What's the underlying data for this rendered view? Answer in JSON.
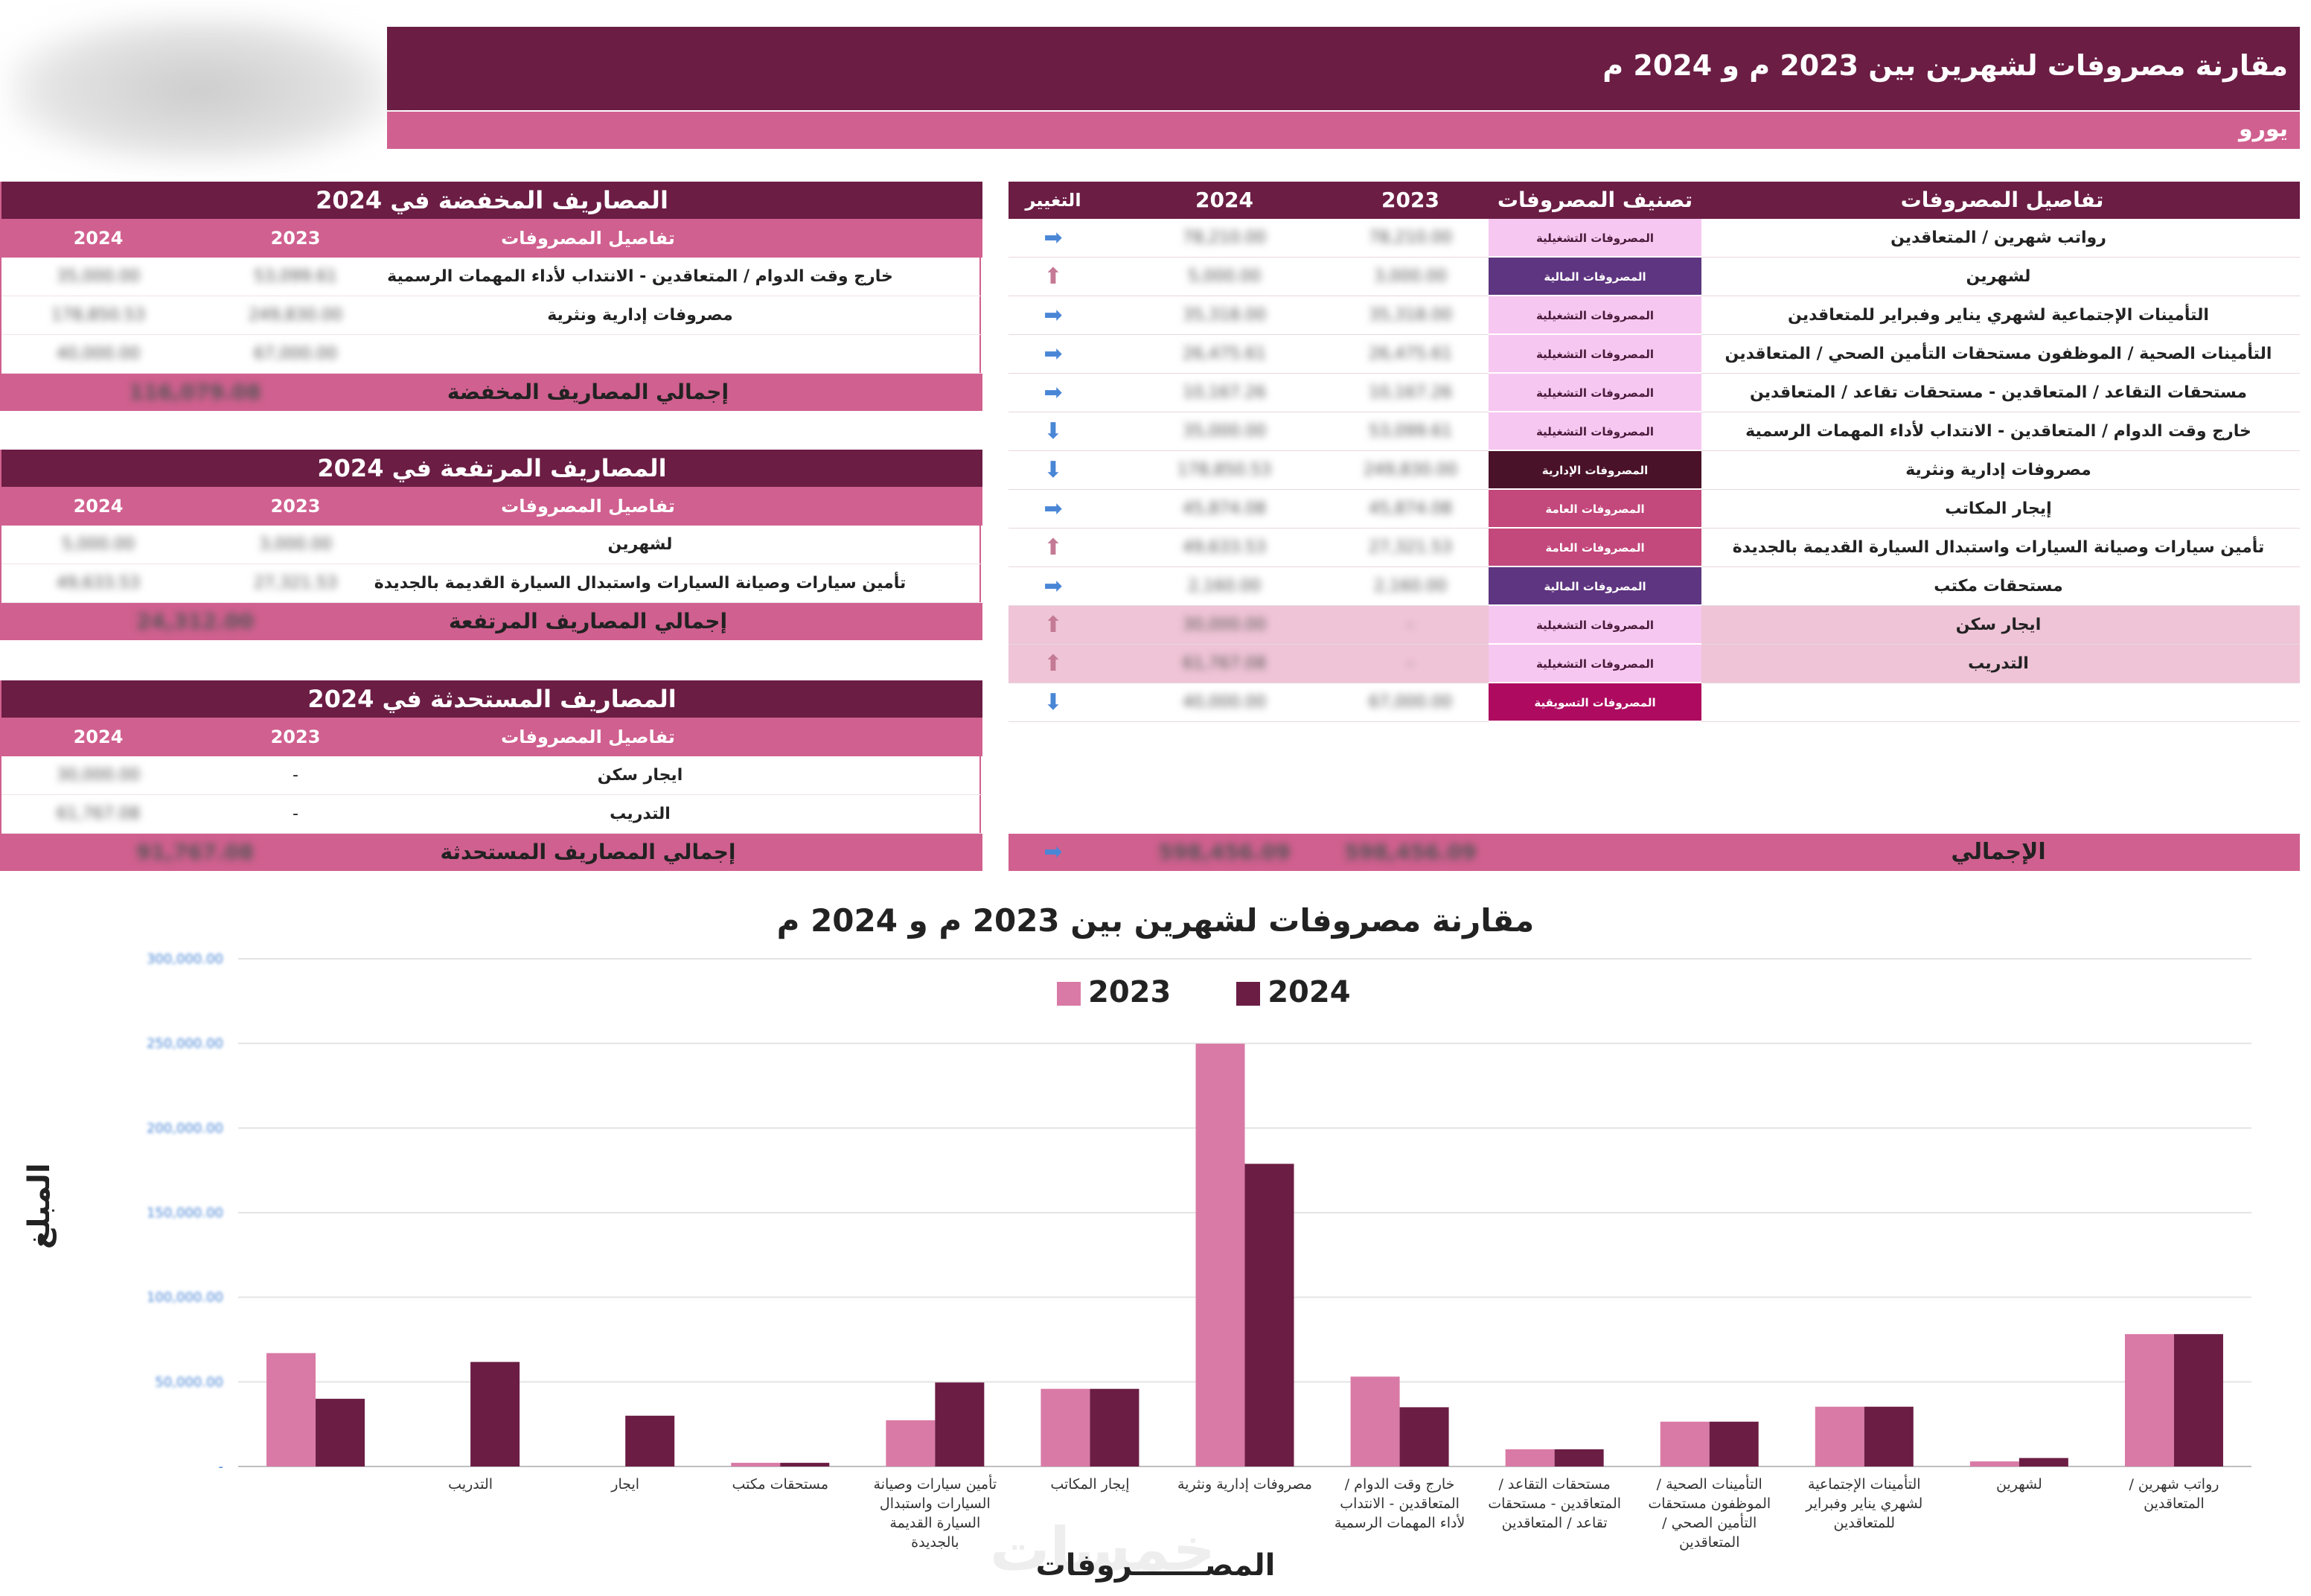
{
  "header": {
    "title": "مقارنة مصروفات لشهرين بين  2023 م  و 2024 م",
    "currency": "يورو"
  },
  "main_table": {
    "headers": {
      "detail": "تفاصيل المصروفات",
      "category": "تصنيف المصروفات",
      "y2023": "2023",
      "y2024": "2024",
      "change": "التغيير"
    },
    "rows": [
      {
        "detail": "رواتب شهرين / المتعاقدين",
        "category": "المصروفات التشغيلية",
        "cat_color": "#f6c7f0",
        "cat_text": "#4a1a3a",
        "y2023": "78,210.00",
        "y2024": "78,210.00",
        "change": "➡",
        "change_kind": "right",
        "highlight": false
      },
      {
        "detail": "لشهرين",
        "category": "المصروفات المالية",
        "cat_color": "#5e3580",
        "cat_text": "#ffffff",
        "y2023": "3,000.00",
        "y2024": "5,000.00",
        "change": "⬆",
        "change_kind": "up",
        "highlight": false
      },
      {
        "detail": "التأمينات الإجتماعية لشهري يناير وفبراير للمتعاقدين",
        "category": "المصروفات التشغيلية",
        "cat_color": "#f6c7f0",
        "cat_text": "#4a1a3a",
        "y2023": "35,318.00",
        "y2024": "35,318.00",
        "change": "➡",
        "change_kind": "right",
        "highlight": false
      },
      {
        "detail": "التأمينات الصحية / الموظفون      مستحقات التأمين الصحي       / المتعاقدين",
        "category": "المصروفات التشغيلية",
        "cat_color": "#f6c7f0",
        "cat_text": "#4a1a3a",
        "y2023": "26,475.61",
        "y2024": "26,475.61",
        "change": "➡",
        "change_kind": "right",
        "highlight": false
      },
      {
        "detail": "مستحقات التقاعد / المتعاقدين - مستحقات تقاعد      / المتعاقدين",
        "category": "المصروفات التشغيلية",
        "cat_color": "#f6c7f0",
        "cat_text": "#4a1a3a",
        "y2023": "10,167.26",
        "y2024": "10,167.26",
        "change": "➡",
        "change_kind": "right",
        "highlight": false
      },
      {
        "detail": "خارج وقت الدوام / المتعاقدين - الانتداب لأداء المهمات الرسمية",
        "category": "المصروفات التشغيلية",
        "cat_color": "#f6c7f0",
        "cat_text": "#4a1a3a",
        "y2023": "53,099.61",
        "y2024": "35,000.00",
        "change": "⬇",
        "change_kind": "down",
        "highlight": false
      },
      {
        "detail": "مصروفات إدارية ونثرية",
        "category": "المصروفات الإدارية",
        "cat_color": "#4a1229",
        "cat_text": "#ffffff",
        "y2023": "249,830.00",
        "y2024": "178,850.53",
        "change": "⬇",
        "change_kind": "down",
        "highlight": false
      },
      {
        "detail": "إيجار المكاتب",
        "category": "المصروفات العامة",
        "cat_color": "#c3487b",
        "cat_text": "#ffffff",
        "y2023": "45,874.08",
        "y2024": "45,874.08",
        "change": "➡",
        "change_kind": "right",
        "highlight": false
      },
      {
        "detail": "تأمين سيارات       وصيانة السيارات واستبدال السيارة القديمة بالجديدة",
        "category": "المصروفات العامة",
        "cat_color": "#c3487b",
        "cat_text": "#ffffff",
        "y2023": "27,321.53",
        "y2024": "49,633.53",
        "change": "⬆",
        "change_kind": "up",
        "highlight": false
      },
      {
        "detail": "مستحقات مكتب",
        "category": "المصروفات المالية",
        "cat_color": "#5e3580",
        "cat_text": "#ffffff",
        "y2023": "2,160.00",
        "y2024": "2,160.00",
        "change": "➡",
        "change_kind": "right",
        "highlight": false
      },
      {
        "detail": "ايجار سكن",
        "category": "المصروفات التشغيلية",
        "cat_color": "#f6c7f0",
        "cat_text": "#4a1a3a",
        "y2023": "-",
        "y2024": "30,000.00",
        "change": "⬆",
        "change_kind": "up",
        "highlight": true
      },
      {
        "detail": "التدريب",
        "category": "المصروفات التشغيلية",
        "cat_color": "#f6c7f0",
        "cat_text": "#4a1a3a",
        "y2023": "-",
        "y2024": "61,767.08",
        "change": "⬆",
        "change_kind": "up",
        "highlight": true
      },
      {
        "detail": "",
        "category": "المصروفات التسويقية",
        "cat_color": "#ad0a60",
        "cat_text": "#ffffff",
        "y2023": "67,000.00",
        "y2024": "40,000.00",
        "change": "⬇",
        "change_kind": "down",
        "highlight": false
      }
    ],
    "total": {
      "label": "الإجمالي",
      "y2023": "598,456.09",
      "y2024": "598,456.09",
      "change": "➡"
    }
  },
  "side_tables": [
    {
      "title": "المصاريف المخفضة في 2024",
      "sub": {
        "detail": "تفاصيل المصروفات",
        "y2023": "2023",
        "y2024": "2024"
      },
      "rows": [
        {
          "detail": "خارج وقت الدوام / المتعاقدين - الانتداب لأداء المهمات الرسمية",
          "y2023": "53,099.61",
          "y2024": "35,000.00"
        },
        {
          "detail": "مصروفات إدارية ونثرية",
          "y2023": "249,830.00",
          "y2024": "178,850.53"
        },
        {
          "detail": "",
          "y2023": "67,000.00",
          "y2024": "40,000.00"
        }
      ],
      "total_label": "إجمالي المصاريف المخفضة",
      "total_value": "116,079.08"
    },
    {
      "title": "المصاريف المرتفعة في 2024",
      "sub": {
        "detail": "تفاصيل المصروفات",
        "y2023": "2023",
        "y2024": "2024"
      },
      "rows": [
        {
          "detail": "لشهرين",
          "y2023": "3,000.00",
          "y2024": "5,000.00"
        },
        {
          "detail": "تأمين سيارات       وصيانة السيارات واستبدال السيارة القديمة بالجديدة",
          "y2023": "27,321.53",
          "y2024": "49,633.53"
        }
      ],
      "total_label": "إجمالي المصاريف المرتفعة",
      "total_value": "24,312.00"
    },
    {
      "title": "المصاريف المستحدثة في 2024",
      "sub": {
        "detail": "تفاصيل المصروفات",
        "y2023": "2023",
        "y2024": "2024"
      },
      "rows": [
        {
          "detail": "ايجار سكن",
          "y2023": "-",
          "y2024": "30,000.00"
        },
        {
          "detail": "التدريب",
          "y2023": "-",
          "y2024": "61,767.08"
        }
      ],
      "total_label": "إجمالي المصاريف المستحدثة",
      "total_value": "91,767.08"
    }
  ],
  "chart_data": {
    "type": "bar",
    "title": "مقارنة مصروفات لشهرين بين 2023 م  و 2024 م",
    "xlabel": "المصـــــــروفات",
    "ylabel": "المبلغ",
    "ylim": [
      0,
      300000
    ],
    "yticks": [
      "-",
      "50,000.00",
      "100,000.00",
      "150,000.00",
      "200,000.00",
      "250,000.00",
      "300,000.00"
    ],
    "grid": true,
    "legend_position": "top",
    "categories": [
      "رواتب شهرين / المتعاقدين",
      "لشهرين",
      "التأمينات الإجتماعية لشهري يناير وفبراير للمتعاقدين",
      "التأمينات الصحية / الموظفون مستحقات التأمين الصحي / المتعاقدين",
      "مستحقات التقاعد / المتعاقدين - مستحقات تقاعد / المتعاقدين",
      "خارج وقت الدوام / المتعاقدين - الانتداب لأداء المهمات الرسمية",
      "مصروفات إدارية ونثرية",
      "إيجار المكاتب",
      "تأمين سيارات وصيانة السيارات واستبدال السيارة القديمة بالجديدة",
      "مستحقات مكتب",
      "ايجار",
      "التدريب",
      ""
    ],
    "series": [
      {
        "name": "2023",
        "color": "#d97aa6",
        "values": [
          78210,
          3000,
          35318,
          26475.61,
          10167.26,
          53099.61,
          249830,
          45874.08,
          27321.53,
          2160,
          0,
          0,
          67000
        ]
      },
      {
        "name": "2024",
        "color": "#6b1d44",
        "values": [
          78210,
          5000,
          35318,
          26475.61,
          10167.26,
          35000,
          178850.53,
          45874.08,
          49633.53,
          2160,
          30000,
          61767.08,
          40000
        ]
      }
    ]
  }
}
